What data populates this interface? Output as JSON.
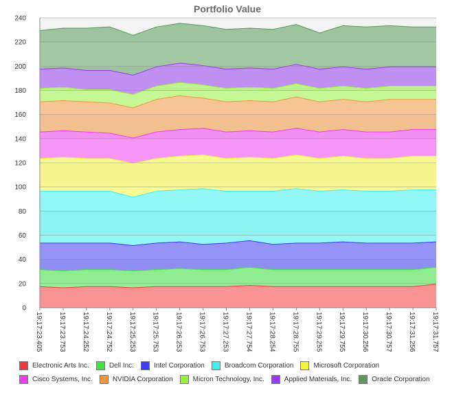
{
  "chart_data": {
    "type": "area",
    "stacked": true,
    "title": "Portfolio Value",
    "xlabel": "",
    "ylabel": "",
    "ylim": [
      0,
      240
    ],
    "yticks": [
      0,
      20,
      40,
      60,
      80,
      100,
      120,
      140,
      160,
      180,
      200,
      220,
      240
    ],
    "grid": true,
    "legend_position": "bottom",
    "categories": [
      "19:17:23.405",
      "19:17:23.753",
      "19:17:24.252",
      "19:17:24.752",
      "19:17:25.253",
      "19:17:25.753",
      "19:17:26.253",
      "19:17:26.753",
      "19:17:27.253",
      "19:17:27.754",
      "19:17:28.254",
      "19:17:28.755",
      "19:17:29.255",
      "19:17:29.755",
      "19:17:30.256",
      "19:17:30.757",
      "19:17:31.256",
      "19:17:31.757"
    ],
    "series": [
      {
        "name": "Electronic Arts Inc.",
        "color": "#f03a3a",
        "values": [
          17.5,
          16.5,
          17.5,
          17.5,
          16.5,
          17.5,
          17.5,
          17.5,
          17.5,
          18.5,
          17.5,
          17.5,
          17.5,
          17.5,
          17.5,
          17.5,
          17.5,
          19.5
        ]
      },
      {
        "name": "Dell Inc.",
        "color": "#3ce63c",
        "values": [
          14,
          14,
          14,
          14,
          14,
          14,
          15,
          14,
          14,
          15,
          14,
          14,
          14,
          14,
          14,
          14,
          14,
          14
        ]
      },
      {
        "name": "Intel Corporation",
        "color": "#3c3cf0",
        "values": [
          22,
          23,
          22,
          22,
          21,
          22,
          22,
          21,
          22,
          22,
          21,
          22,
          22,
          23,
          22,
          22,
          22,
          21
        ]
      },
      {
        "name": "Broadcom Corporation",
        "color": "#3cf0f0",
        "values": [
          43,
          43,
          43,
          43,
          40,
          43,
          43,
          46,
          43,
          41,
          44,
          45,
          43,
          43,
          43,
          43,
          44,
          43
        ]
      },
      {
        "name": "Microsoft Corporation",
        "color": "#f5f53c",
        "values": [
          27,
          28,
          27,
          27,
          28,
          27,
          28,
          28,
          27,
          28,
          27,
          28,
          27,
          28,
          27,
          27,
          28,
          28
        ]
      },
      {
        "name": "Cisco Systems, Inc.",
        "color": "#f03cf0",
        "values": [
          22,
          22,
          22,
          21,
          21,
          22,
          22,
          22,
          22,
          22,
          22,
          22,
          22,
          22,
          22,
          22,
          22,
          22
        ]
      },
      {
        "name": "NVIDIA Corporation",
        "color": "#f0963c",
        "values": [
          25,
          25,
          25,
          25,
          25,
          27,
          28,
          25,
          25,
          25,
          25,
          26,
          25,
          25,
          25,
          27,
          25,
          25
        ]
      },
      {
        "name": "Micron Technology, Inc.",
        "color": "#96f03c",
        "values": [
          11,
          11,
          10,
          11,
          11,
          11,
          11,
          11,
          11,
          11,
          11,
          11,
          11,
          11,
          11,
          11,
          11,
          11
        ]
      },
      {
        "name": "Applied Materials, Inc.",
        "color": "#963cf0",
        "values": [
          16,
          16,
          16,
          16,
          16,
          16,
          16,
          16,
          16,
          16,
          16,
          16,
          16,
          16,
          16,
          16,
          16,
          16
        ]
      },
      {
        "name": "Oracle Corporation",
        "color": "#5a9a5a",
        "values": [
          32,
          33,
          35,
          36,
          33,
          33,
          33,
          33,
          33,
          33,
          33,
          33,
          30,
          34,
          35,
          34,
          33,
          33
        ]
      }
    ]
  }
}
